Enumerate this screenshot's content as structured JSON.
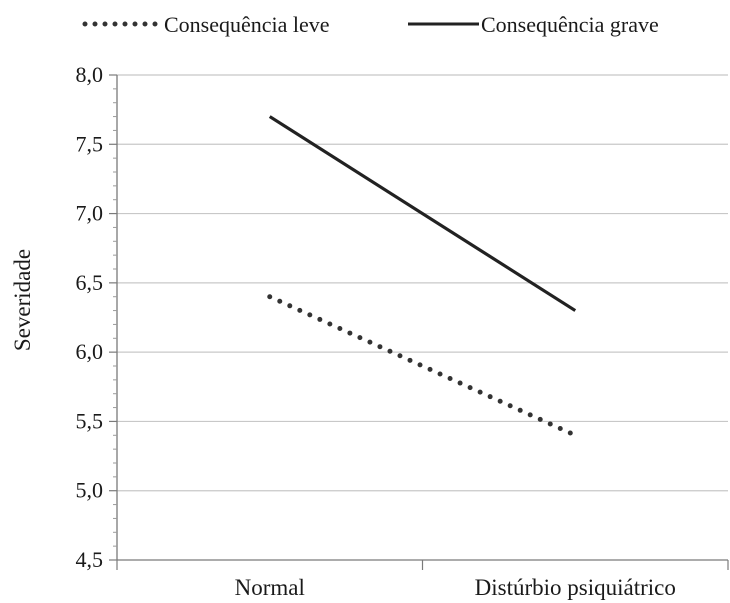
{
  "chart_data": {
    "type": "line",
    "categories": [
      "Normal",
      "Distúrbio psiquiátrico"
    ],
    "series": [
      {
        "name": "Consequência leve",
        "values": [
          6.4,
          5.4
        ],
        "style": "dotted",
        "color": "#333333"
      },
      {
        "name": "Consequência grave",
        "values": [
          7.7,
          6.3
        ],
        "style": "solid",
        "color": "#222222"
      }
    ],
    "title": "",
    "xlabel": "",
    "ylabel": "Severidade",
    "ylim": [
      4.5,
      8.0
    ],
    "yticks": [
      "4,5",
      "5,0",
      "5,5",
      "6,0",
      "6,5",
      "7,0",
      "7,5",
      "8,0"
    ],
    "grid": true,
    "legend_position": "top"
  }
}
